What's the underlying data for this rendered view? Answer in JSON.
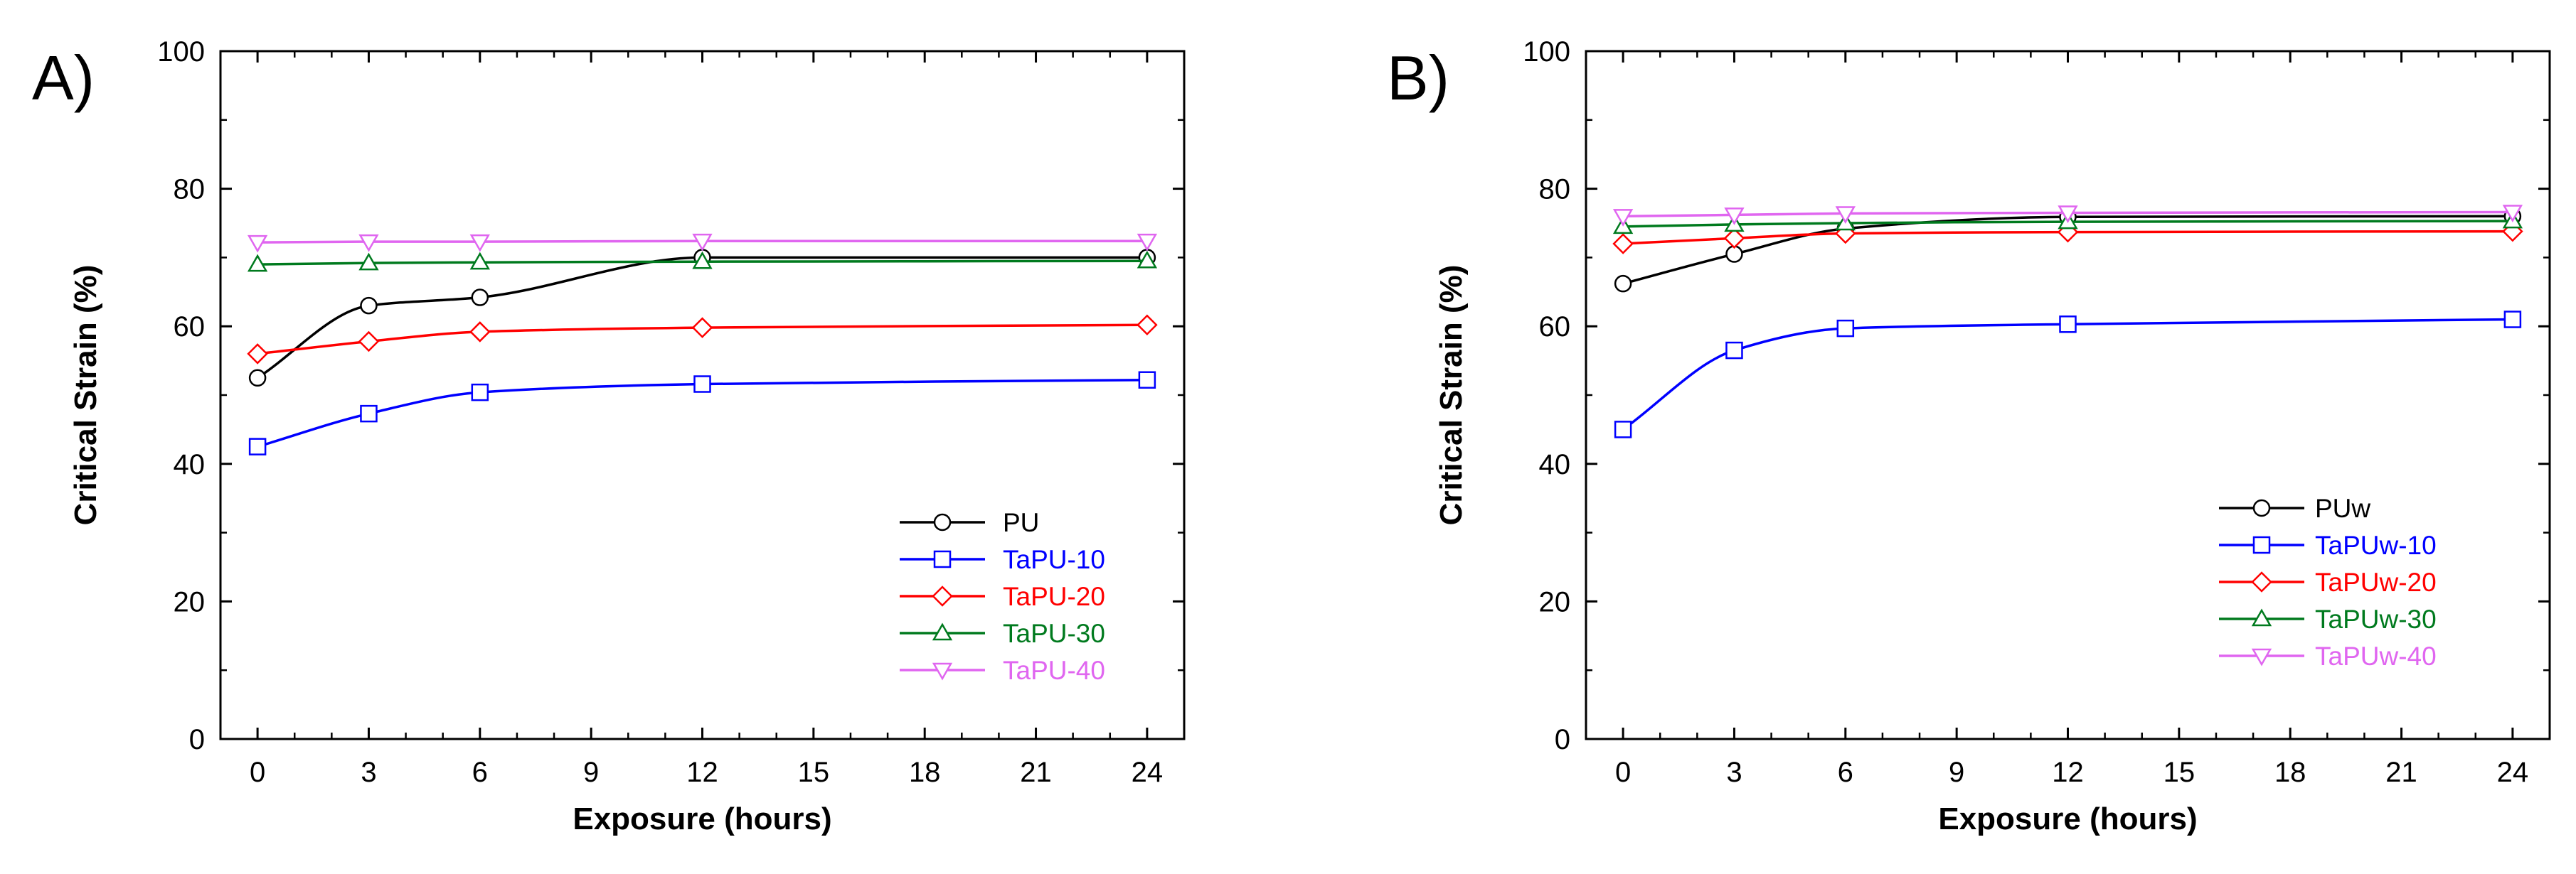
{
  "chart_data": [
    {
      "type": "line",
      "panel_label": "A)",
      "xlabel": "Exposure (hours)",
      "ylabel": "Critical Strain (%)",
      "xlim": [
        -1,
        25
      ],
      "ylim": [
        0,
        100
      ],
      "xticks": [
        0,
        3,
        6,
        9,
        12,
        15,
        18,
        21,
        24
      ],
      "yticks": [
        0,
        20,
        40,
        60,
        80,
        100
      ],
      "legend_position": "bottom-right",
      "series": [
        {
          "name": "PU",
          "color": "#000000",
          "marker": "circle",
          "x": [
            0,
            3,
            6,
            12,
            24
          ],
          "y": [
            52.5,
            63,
            64.2,
            70,
            70
          ]
        },
        {
          "name": "TaPU-10",
          "color": "#0000ff",
          "marker": "square",
          "x": [
            0,
            3,
            6,
            12,
            24
          ],
          "y": [
            42.5,
            47.3,
            50.4,
            51.6,
            52.2
          ]
        },
        {
          "name": "TaPU-20",
          "color": "#ff0000",
          "marker": "diamond",
          "x": [
            0,
            3,
            6,
            12,
            24
          ],
          "y": [
            56,
            57.8,
            59.2,
            59.8,
            60.2
          ]
        },
        {
          "name": "TaPU-30",
          "color": "#007a1e",
          "marker": "triangle-up",
          "x": [
            0,
            3,
            6,
            12,
            24
          ],
          "y": [
            69,
            69.2,
            69.3,
            69.4,
            69.5
          ]
        },
        {
          "name": "TaPU-40",
          "color": "#e066f0",
          "marker": "triangle-down",
          "x": [
            0,
            3,
            6,
            12,
            24
          ],
          "y": [
            72.2,
            72.3,
            72.3,
            72.4,
            72.4
          ]
        }
      ]
    },
    {
      "type": "line",
      "panel_label": "B)",
      "xlabel": "Exposure (hours)",
      "ylabel": "Critical Strain (%)",
      "xlim": [
        -1,
        25
      ],
      "ylim": [
        0,
        100
      ],
      "xticks": [
        0,
        3,
        6,
        9,
        12,
        15,
        18,
        21,
        24
      ],
      "yticks": [
        0,
        20,
        40,
        60,
        80,
        100
      ],
      "legend_position": "bottom-right",
      "series": [
        {
          "name": "PUw",
          "color": "#000000",
          "marker": "circle",
          "x": [
            0,
            3,
            6,
            12,
            24
          ],
          "y": [
            66.2,
            70.5,
            74.2,
            75.9,
            76
          ]
        },
        {
          "name": "TaPUw-10",
          "color": "#0000ff",
          "marker": "square",
          "x": [
            0,
            3,
            6,
            12,
            24
          ],
          "y": [
            45,
            56.5,
            59.7,
            60.3,
            61
          ]
        },
        {
          "name": "TaPUw-20",
          "color": "#ff0000",
          "marker": "diamond",
          "x": [
            0,
            3,
            6,
            12,
            24
          ],
          "y": [
            72,
            72.8,
            73.5,
            73.7,
            73.8
          ]
        },
        {
          "name": "TaPUw-30",
          "color": "#007a1e",
          "marker": "triangle-up",
          "x": [
            0,
            3,
            6,
            12,
            24
          ],
          "y": [
            74.5,
            74.8,
            75,
            75.2,
            75.3
          ]
        },
        {
          "name": "TaPUw-40",
          "color": "#e066f0",
          "marker": "triangle-down",
          "x": [
            0,
            3,
            6,
            12,
            24
          ],
          "y": [
            76,
            76.2,
            76.4,
            76.5,
            76.6
          ]
        }
      ]
    }
  ]
}
